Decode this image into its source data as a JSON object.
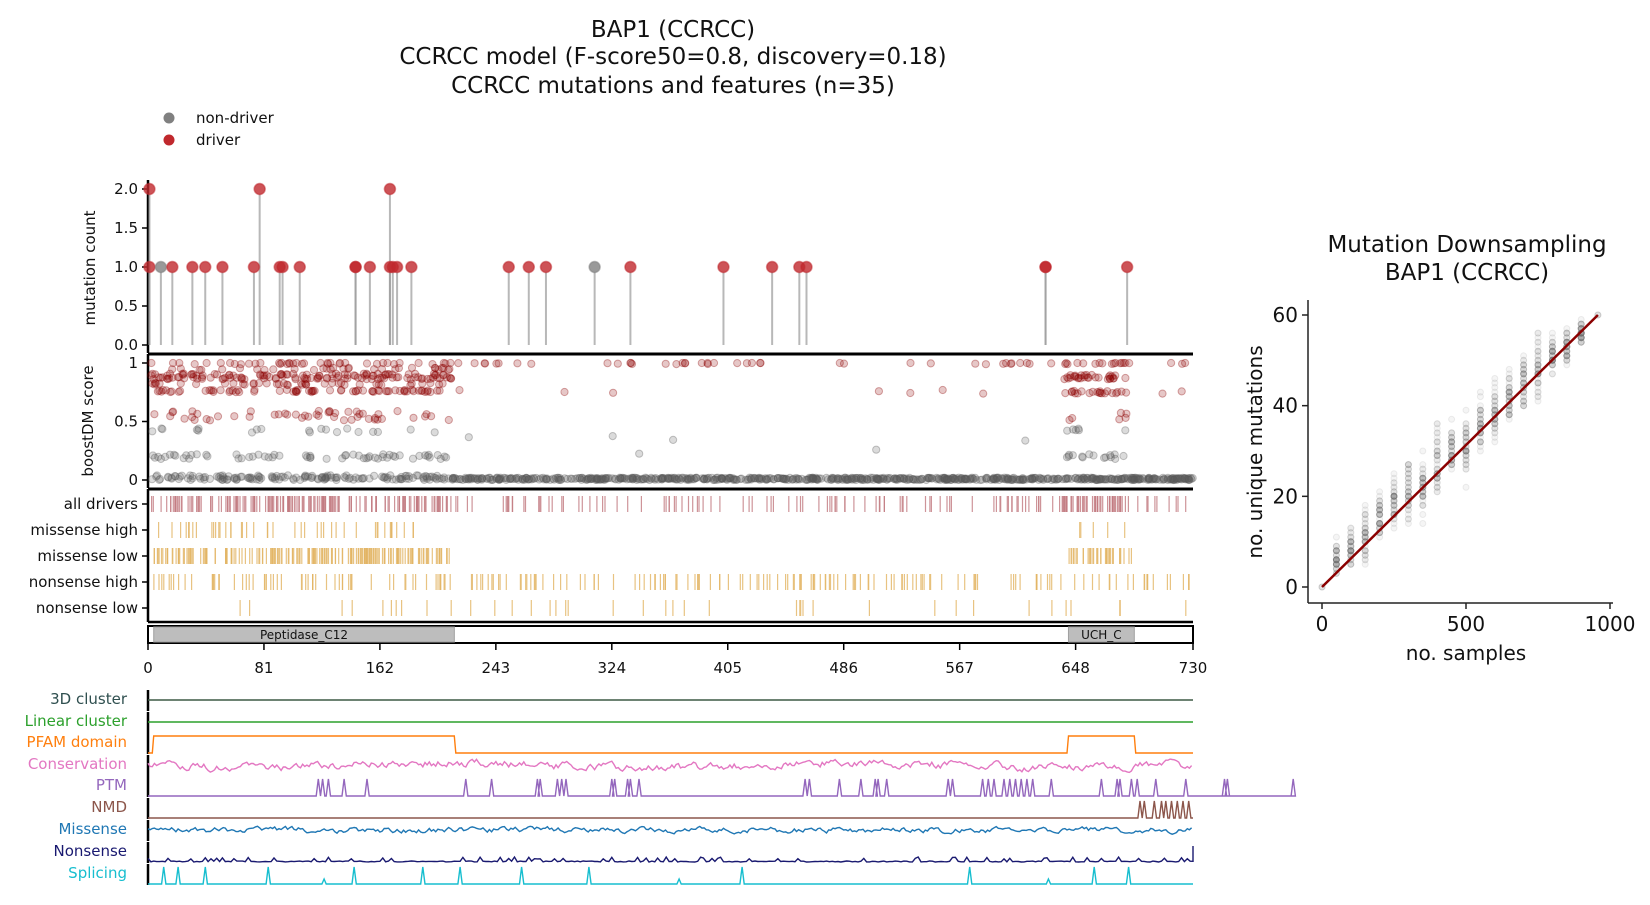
{
  "header": {
    "title_lines": [
      "BAP1 (CCRCC)",
      "CCRCC model (F-score50=0.8, discovery=0.18)",
      "CCRCC mutations and features (n=35)"
    ]
  },
  "legend": {
    "items": [
      {
        "label": "non-driver",
        "color": "#808080"
      },
      {
        "label": "driver",
        "color": "#c0282d"
      }
    ]
  },
  "colors": {
    "driver": "#c0282d",
    "non_driver": "#7f7f7f",
    "stem": "#b0b0b0",
    "boost_driver": "#8b0000",
    "boost_nondriver": "#5a5a5a",
    "all_drivers_track": "#c27980",
    "consequence_track": "#e2b463",
    "domain_fill": "#bdbdbd",
    "red_line": "#8b0000",
    "ds_points": "#777777"
  },
  "chart_data": [
    {
      "type": "scatter",
      "name": "protein-mutation-overview",
      "protein_length": 730,
      "xticks": [
        0,
        81,
        162,
        243,
        324,
        405,
        486,
        567,
        648,
        730
      ],
      "xlim": [
        0,
        730
      ],
      "lollipop": {
        "ylabel": "mutation count",
        "ylim": [
          0,
          2.0
        ],
        "yticks": [
          "0.0",
          "0.5",
          "1.0",
          "1.5",
          "2.0"
        ],
        "mutations": [
          {
            "pos": 1,
            "count": 1,
            "class": "driver"
          },
          {
            "pos": 1,
            "count": 2,
            "class": "driver"
          },
          {
            "pos": 9,
            "count": 1,
            "class": "non-driver"
          },
          {
            "pos": 17,
            "count": 1,
            "class": "driver"
          },
          {
            "pos": 31,
            "count": 1,
            "class": "driver"
          },
          {
            "pos": 40,
            "count": 1,
            "class": "driver"
          },
          {
            "pos": 52,
            "count": 1,
            "class": "driver"
          },
          {
            "pos": 74,
            "count": 1,
            "class": "driver"
          },
          {
            "pos": 78,
            "count": 2,
            "class": "driver"
          },
          {
            "pos": 92,
            "count": 1,
            "class": "driver"
          },
          {
            "pos": 94,
            "count": 1,
            "class": "driver"
          },
          {
            "pos": 106,
            "count": 1,
            "class": "driver"
          },
          {
            "pos": 145,
            "count": 1,
            "class": "driver"
          },
          {
            "pos": 145,
            "count": 1,
            "class": "driver"
          },
          {
            "pos": 155,
            "count": 1,
            "class": "driver"
          },
          {
            "pos": 169,
            "count": 1,
            "class": "driver"
          },
          {
            "pos": 169,
            "count": 2,
            "class": "driver"
          },
          {
            "pos": 171,
            "count": 1,
            "class": "driver"
          },
          {
            "pos": 174,
            "count": 1,
            "class": "driver"
          },
          {
            "pos": 184,
            "count": 1,
            "class": "driver"
          },
          {
            "pos": 252,
            "count": 1,
            "class": "driver"
          },
          {
            "pos": 266,
            "count": 1,
            "class": "driver"
          },
          {
            "pos": 278,
            "count": 1,
            "class": "driver"
          },
          {
            "pos": 312,
            "count": 1,
            "class": "non-driver"
          },
          {
            "pos": 337,
            "count": 1,
            "class": "driver"
          },
          {
            "pos": 402,
            "count": 1,
            "class": "driver"
          },
          {
            "pos": 436,
            "count": 1,
            "class": "driver"
          },
          {
            "pos": 455,
            "count": 1,
            "class": "driver"
          },
          {
            "pos": 460,
            "count": 1,
            "class": "driver"
          },
          {
            "pos": 627,
            "count": 1,
            "class": "driver"
          },
          {
            "pos": 627,
            "count": 1,
            "class": "driver"
          },
          {
            "pos": 684,
            "count": 1,
            "class": "driver"
          }
        ]
      },
      "boostdm": {
        "ylabel": "boostDM score",
        "yticks": [
          "0",
          "0.5",
          "1"
        ],
        "groups": [
          {
            "range": [
              2,
              212
            ],
            "score": 1.0,
            "spread": 0.01,
            "n": 40,
            "class": "driver"
          },
          {
            "range": [
              2,
              212
            ],
            "score": 0.95,
            "spread": 0.01,
            "n": 30,
            "class": "driver"
          },
          {
            "range": [
              2,
              212
            ],
            "score": 0.9,
            "spread": 0.01,
            "n": 60,
            "class": "driver"
          },
          {
            "range": [
              2,
              212
            ],
            "score": 0.87,
            "spread": 0.01,
            "n": 70,
            "class": "driver"
          },
          {
            "range": [
              2,
              212
            ],
            "score": 0.82,
            "spread": 0.01,
            "n": 40,
            "class": "driver"
          },
          {
            "range": [
              2,
              212
            ],
            "score": 0.76,
            "spread": 0.01,
            "n": 70,
            "class": "driver"
          },
          {
            "range": [
              2,
              212
            ],
            "score": 0.55,
            "spread": 0.04,
            "n": 50,
            "class": "driver"
          },
          {
            "range": [
              2,
              212
            ],
            "score": 0.42,
            "spread": 0.02,
            "n": 20,
            "class": "non-driver"
          },
          {
            "range": [
              2,
              212
            ],
            "score": 0.2,
            "spread": 0.02,
            "n": 60,
            "class": "non-driver"
          },
          {
            "range": [
              2,
              212
            ],
            "score": 0.02,
            "spread": 0.02,
            "n": 150,
            "class": "non-driver"
          },
          {
            "range": [
              640,
              685
            ],
            "score": 1.0,
            "spread": 0.01,
            "n": 10,
            "class": "driver"
          },
          {
            "range": [
              640,
              685
            ],
            "score": 0.88,
            "spread": 0.02,
            "n": 30,
            "class": "driver"
          },
          {
            "range": [
              640,
              685
            ],
            "score": 0.75,
            "spread": 0.01,
            "n": 20,
            "class": "driver"
          },
          {
            "range": [
              640,
              685
            ],
            "score": 0.55,
            "spread": 0.04,
            "n": 6,
            "class": "driver"
          },
          {
            "range": [
              640,
              685
            ],
            "score": 0.42,
            "spread": 0.02,
            "n": 6,
            "class": "non-driver"
          },
          {
            "range": [
              640,
              685
            ],
            "score": 0.2,
            "spread": 0.02,
            "n": 15,
            "class": "non-driver"
          },
          {
            "range": [
              212,
              730
            ],
            "score": 1.0,
            "spread": 0.01,
            "n": 50,
            "class": "driver"
          },
          {
            "range": [
              212,
              730
            ],
            "score": 0.75,
            "spread": 0.02,
            "n": 10,
            "class": "driver"
          },
          {
            "range": [
              212,
              730
            ],
            "score": 0.3,
            "spread": 0.1,
            "n": 6,
            "class": "non-driver"
          },
          {
            "range": [
              212,
              730
            ],
            "score": 0.01,
            "spread": 0.01,
            "n": 700,
            "class": "non-driver"
          }
        ]
      },
      "tracks": [
        {
          "label": "all drivers",
          "color_key": "all_drivers_track",
          "segments": [
            {
              "range": [
                2,
                212
              ],
              "n": 170
            },
            {
              "range": [
                640,
                685
              ],
              "n": 40
            },
            {
              "range": [
                212,
                730
              ],
              "n": 120
            }
          ]
        },
        {
          "label": "missense high",
          "color_key": "consequence_track",
          "segments": [
            {
              "range": [
                4,
                190
              ],
              "n": 45
            },
            {
              "range": [
                643,
                684
              ],
              "n": 5
            }
          ]
        },
        {
          "label": "missense low",
          "color_key": "consequence_track",
          "segments": [
            {
              "range": [
                4,
                212
              ],
              "n": 190
            },
            {
              "range": [
                643,
                687
              ],
              "n": 35
            }
          ]
        },
        {
          "label": "nonsense high",
          "color_key": "consequence_track",
          "segments": [
            {
              "range": [
                0,
                730
              ],
              "n": 200
            }
          ]
        },
        {
          "label": "nonsense low",
          "color_key": "consequence_track",
          "segments": [
            {
              "range": [
                30,
                730
              ],
              "n": 40
            }
          ]
        }
      ],
      "domains": [
        {
          "name": "Peptidase_C12",
          "start": 4,
          "end": 214
        },
        {
          "name": "UCH_C",
          "start": 643,
          "end": 689
        }
      ],
      "features": [
        {
          "label": "3D cluster",
          "color": "#3d5a45",
          "label_color": "#2f4f4f",
          "kind": "flat"
        },
        {
          "label": "Linear cluster",
          "color": "#2ca02c",
          "label_color": "#2ca02c",
          "kind": "flat"
        },
        {
          "label": "PFAM domain",
          "color": "#ff7f0e",
          "label_color": "#ff7f0e",
          "kind": "domain"
        },
        {
          "label": "Conservation",
          "color": "#e377c2",
          "label_color": "#e377c2",
          "kind": "noise",
          "amp": 0.5
        },
        {
          "label": "PTM",
          "color": "#9467bd",
          "label_color": "#9467bd",
          "kind": "peaks",
          "peaks": [
            119,
            122,
            126,
            137,
            153,
            222,
            240,
            272,
            274,
            286,
            289,
            292,
            324,
            326,
            335,
            337,
            343,
            459,
            462,
            483,
            498,
            508,
            510,
            516,
            559,
            562,
            583,
            587,
            591,
            598,
            602,
            606,
            610,
            614,
            618,
            631,
            666,
            677,
            679,
            687,
            691,
            704,
            725,
            752,
            754,
            800
          ]
        },
        {
          "label": "NMD",
          "color": "#8c564b",
          "label_color": "#8c564b",
          "kind": "peaks",
          "peaks": [
            693,
            696,
            703,
            708,
            711,
            715,
            719,
            723,
            727
          ]
        },
        {
          "label": "Missense",
          "color": "#1f77b4",
          "label_color": "#1f77b4",
          "kind": "noise",
          "amp": 0.35
        },
        {
          "label": "Nonsense",
          "color": "#191970",
          "label_color": "#191970",
          "kind": "spikes"
        },
        {
          "label": "Splicing",
          "color": "#17becf",
          "label_color": "#17becf",
          "kind": "peaks",
          "peaks": [
            11,
            21,
            40,
            84,
            144,
            192,
            218,
            261,
            308,
            415,
            574,
            661,
            685
          ],
          "small_peaks": [
            123,
            371,
            629
          ]
        }
      ]
    },
    {
      "type": "scatter",
      "name": "mutation-downsampling",
      "title": "Mutation Downsampling\nBAP1 (CCRCC)",
      "title_lines": [
        "Mutation Downsampling",
        "BAP1 (CCRCC)"
      ],
      "xlabel": "no. samples",
      "ylabel": "no. unique mutations",
      "xlim": [
        -40,
        1010
      ],
      "ylim": [
        -3,
        63
      ],
      "xticks": [
        "0",
        "500",
        "1000"
      ],
      "yticks": [
        "0",
        "20",
        "40",
        "60"
      ],
      "columns": [
        {
          "x": 0,
          "min": 0,
          "max": 0,
          "mean": 0
        },
        {
          "x": 50,
          "min": 0,
          "max": 12,
          "mean": 4
        },
        {
          "x": 100,
          "min": 3,
          "max": 14,
          "mean": 7
        },
        {
          "x": 150,
          "min": 3,
          "max": 19,
          "mean": 10
        },
        {
          "x": 200,
          "min": 8,
          "max": 22,
          "mean": 13
        },
        {
          "x": 250,
          "min": 10,
          "max": 27,
          "mean": 16
        },
        {
          "x": 300,
          "min": 10,
          "max": 32,
          "mean": 20
        },
        {
          "x": 350,
          "min": 12,
          "max": 33,
          "mean": 23
        },
        {
          "x": 400,
          "min": 18,
          "max": 39,
          "mean": 27
        },
        {
          "x": 450,
          "min": 21,
          "max": 38,
          "mean": 29
        },
        {
          "x": 500,
          "min": 21,
          "max": 41,
          "mean": 32
        },
        {
          "x": 550,
          "min": 27,
          "max": 44,
          "mean": 36
        },
        {
          "x": 600,
          "min": 30,
          "max": 48,
          "mean": 39
        },
        {
          "x": 650,
          "min": 33,
          "max": 51,
          "mean": 42
        },
        {
          "x": 700,
          "min": 36,
          "max": 54,
          "mean": 45
        },
        {
          "x": 750,
          "min": 39,
          "max": 57,
          "mean": 48
        },
        {
          "x": 800,
          "min": 45,
          "max": 57,
          "mean": 51
        },
        {
          "x": 850,
          "min": 47,
          "max": 59,
          "mean": 54
        },
        {
          "x": 900,
          "min": 52,
          "max": 60,
          "mean": 57
        },
        {
          "x": 958,
          "min": 60,
          "max": 60,
          "mean": 60
        }
      ],
      "fit_line": [
        [
          0,
          0
        ],
        [
          958,
          60
        ]
      ]
    }
  ]
}
